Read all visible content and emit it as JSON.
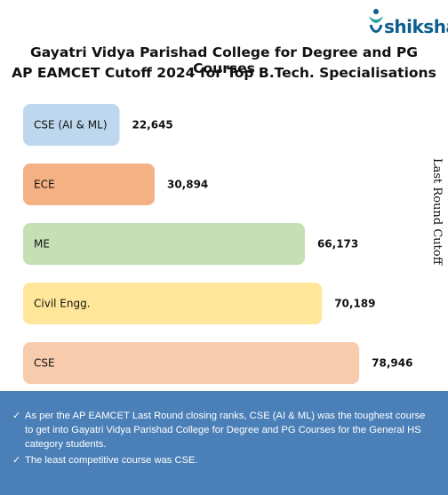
{
  "brand": {
    "name": "shiksha"
  },
  "chart_data": {
    "type": "bar",
    "orientation": "horizontal",
    "title": "Gayatri Vidya Parishad College for Degree and PG Courses",
    "subtitle": "AP EAMCET Cutoff 2024 for Top B.Tech. Specialisations",
    "ylabel": "Last Round Cutoff",
    "categories": [
      "CSE (AI & ML)",
      "ECE",
      "ME",
      "Civil Engg.",
      "CSE"
    ],
    "values": [
      22645,
      30894,
      66173,
      70189,
      78946
    ],
    "value_labels": [
      "22,645",
      "30,894",
      "66,173",
      "70,189",
      "78,946"
    ],
    "colors": [
      "#bdd7ee",
      "#f4b183",
      "#c5e0b4",
      "#ffe699",
      "#f8cbad"
    ],
    "grid": false,
    "legend": "none"
  },
  "notes": [
    "As per the AP EAMCET Last Round closing ranks, CSE (AI & ML) was the toughest course to get into Gayatri Vidya Parishad College for Degree and PG Courses for the General HS category students.",
    "The least competitive course was CSE."
  ],
  "icons": {
    "logo": "shiksha-logo-icon",
    "bullet": "check-icon"
  }
}
